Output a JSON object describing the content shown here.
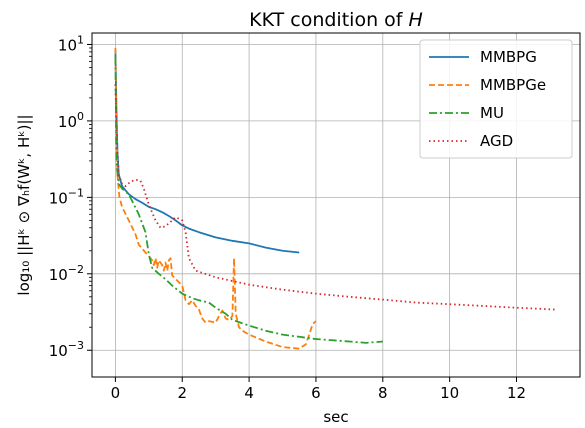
{
  "chart_data": {
    "type": "line",
    "title_prefix": "KKT condition of ",
    "title_var": "H",
    "xlabel": "sec",
    "ylabel": "log₁₀ ||Hᵏ ⊙ ∇ₕf(Wᵏ, Hᵏ)||",
    "xlim": [
      -0.7,
      13.9
    ],
    "ylim_log10": [
      -3.35,
      1.15
    ],
    "y_scale": "log",
    "grid": true,
    "legend_position": "top-right",
    "x_ticks": [
      {
        "value": 0,
        "label": "0"
      },
      {
        "value": 2,
        "label": "2"
      },
      {
        "value": 4,
        "label": "4"
      },
      {
        "value": 6,
        "label": "6"
      },
      {
        "value": 8,
        "label": "8"
      },
      {
        "value": 10,
        "label": "10"
      },
      {
        "value": 12,
        "label": "12"
      }
    ],
    "y_ticks": [
      {
        "value": 10,
        "base": "10",
        "exp": "1"
      },
      {
        "value": 1,
        "base": "10",
        "exp": "0"
      },
      {
        "value": 0.1,
        "base": "10",
        "exp": "−1"
      },
      {
        "value": 0.01,
        "base": "10",
        "exp": "−2"
      },
      {
        "value": 0.001,
        "base": "10",
        "exp": "−3"
      }
    ],
    "series": [
      {
        "name": "MMBPG",
        "color": "#1f77b4",
        "dash": "solid",
        "points": [
          [
            0.0,
            8.5
          ],
          [
            0.03,
            1.5
          ],
          [
            0.06,
            0.4
          ],
          [
            0.1,
            0.2
          ],
          [
            0.2,
            0.14
          ],
          [
            0.4,
            0.11
          ],
          [
            0.6,
            0.095
          ],
          [
            0.8,
            0.085
          ],
          [
            1.0,
            0.075
          ],
          [
            1.2,
            0.07
          ],
          [
            1.4,
            0.064
          ],
          [
            1.6,
            0.057
          ],
          [
            1.8,
            0.05
          ],
          [
            2.0,
            0.043
          ],
          [
            2.2,
            0.039
          ],
          [
            2.5,
            0.035
          ],
          [
            3.0,
            0.03
          ],
          [
            3.5,
            0.027
          ],
          [
            4.0,
            0.025
          ],
          [
            4.5,
            0.022
          ],
          [
            5.0,
            0.02
          ],
          [
            5.5,
            0.019
          ]
        ]
      },
      {
        "name": "MMBPGe",
        "color": "#ff7f0e",
        "dash": "dashed",
        "points": [
          [
            0.0,
            9.0
          ],
          [
            0.03,
            1.0
          ],
          [
            0.06,
            0.2
          ],
          [
            0.12,
            0.1
          ],
          [
            0.2,
            0.075
          ],
          [
            0.4,
            0.05
          ],
          [
            0.6,
            0.033
          ],
          [
            0.7,
            0.024
          ],
          [
            0.9,
            0.019
          ],
          [
            1.0,
            0.017
          ],
          [
            1.1,
            0.015
          ],
          [
            1.15,
            0.013
          ],
          [
            1.2,
            0.016
          ],
          [
            1.25,
            0.012
          ],
          [
            1.3,
            0.015
          ],
          [
            1.4,
            0.013
          ],
          [
            1.45,
            0.011
          ],
          [
            1.5,
            0.014
          ],
          [
            1.55,
            0.011
          ],
          [
            1.6,
            0.015
          ],
          [
            1.65,
            0.016
          ],
          [
            1.7,
            0.0095
          ],
          [
            2.0,
            0.007
          ],
          [
            2.1,
            0.0045
          ],
          [
            2.2,
            0.004
          ],
          [
            2.3,
            0.0045
          ],
          [
            2.4,
            0.0038
          ],
          [
            2.5,
            0.0034
          ],
          [
            2.6,
            0.0026
          ],
          [
            2.7,
            0.0023
          ],
          [
            2.8,
            0.0024
          ],
          [
            3.0,
            0.0023
          ],
          [
            3.1,
            0.0028
          ],
          [
            3.2,
            0.0033
          ],
          [
            3.3,
            0.0026
          ],
          [
            3.4,
            0.0025
          ],
          [
            3.5,
            0.0028
          ],
          [
            3.55,
            0.016
          ],
          [
            3.6,
            0.003
          ],
          [
            3.7,
            0.002
          ],
          [
            3.8,
            0.0018
          ],
          [
            4.0,
            0.0016
          ],
          [
            4.5,
            0.0013
          ],
          [
            5.0,
            0.0011
          ],
          [
            5.5,
            0.00105
          ],
          [
            5.7,
            0.0012
          ],
          [
            5.8,
            0.0016
          ],
          [
            5.9,
            0.0022
          ],
          [
            6.0,
            0.0024
          ]
        ]
      },
      {
        "name": "MU",
        "color": "#2ca02c",
        "dash": "dashdot",
        "points": [
          [
            0.0,
            7.0
          ],
          [
            0.02,
            1.0
          ],
          [
            0.04,
            0.25
          ],
          [
            0.1,
            0.15
          ],
          [
            0.2,
            0.13
          ],
          [
            0.4,
            0.11
          ],
          [
            0.5,
            0.09
          ],
          [
            0.7,
            0.06
          ],
          [
            0.9,
            0.035
          ],
          [
            1.0,
            0.018
          ],
          [
            1.1,
            0.012
          ],
          [
            1.3,
            0.01
          ],
          [
            1.5,
            0.0085
          ],
          [
            1.7,
            0.007
          ],
          [
            2.0,
            0.0055
          ],
          [
            2.3,
            0.0048
          ],
          [
            2.5,
            0.0045
          ],
          [
            2.8,
            0.0042
          ],
          [
            3.0,
            0.0036
          ],
          [
            3.3,
            0.003
          ],
          [
            3.5,
            0.0025
          ],
          [
            4.0,
            0.0021
          ],
          [
            4.5,
            0.0018
          ],
          [
            5.0,
            0.0016
          ],
          [
            5.5,
            0.0015
          ],
          [
            6.0,
            0.0014
          ],
          [
            6.5,
            0.00135
          ],
          [
            7.0,
            0.0013
          ],
          [
            7.5,
            0.00125
          ],
          [
            8.0,
            0.0013
          ]
        ]
      },
      {
        "name": "AGD",
        "color": "#d62728",
        "dash": "dotted",
        "points": [
          [
            0.0,
            3.0
          ],
          [
            0.05,
            0.5
          ],
          [
            0.1,
            0.2
          ],
          [
            0.2,
            0.15
          ],
          [
            0.3,
            0.14
          ],
          [
            0.45,
            0.16
          ],
          [
            0.6,
            0.17
          ],
          [
            0.75,
            0.165
          ],
          [
            0.85,
            0.13
          ],
          [
            1.0,
            0.08
          ],
          [
            1.2,
            0.05
          ],
          [
            1.35,
            0.04
          ],
          [
            1.5,
            0.042
          ],
          [
            1.7,
            0.05
          ],
          [
            1.8,
            0.055
          ],
          [
            2.0,
            0.05
          ],
          [
            2.1,
            0.035
          ],
          [
            2.2,
            0.016
          ],
          [
            2.4,
            0.011
          ],
          [
            3.0,
            0.009
          ],
          [
            4.0,
            0.0072
          ],
          [
            5.0,
            0.0062
          ],
          [
            6.0,
            0.0055
          ],
          [
            7.0,
            0.005
          ],
          [
            8.0,
            0.0046
          ],
          [
            9.0,
            0.0042
          ],
          [
            10.0,
            0.004
          ],
          [
            11.0,
            0.0038
          ],
          [
            12.0,
            0.0036
          ],
          [
            13.2,
            0.0034
          ]
        ]
      }
    ]
  }
}
